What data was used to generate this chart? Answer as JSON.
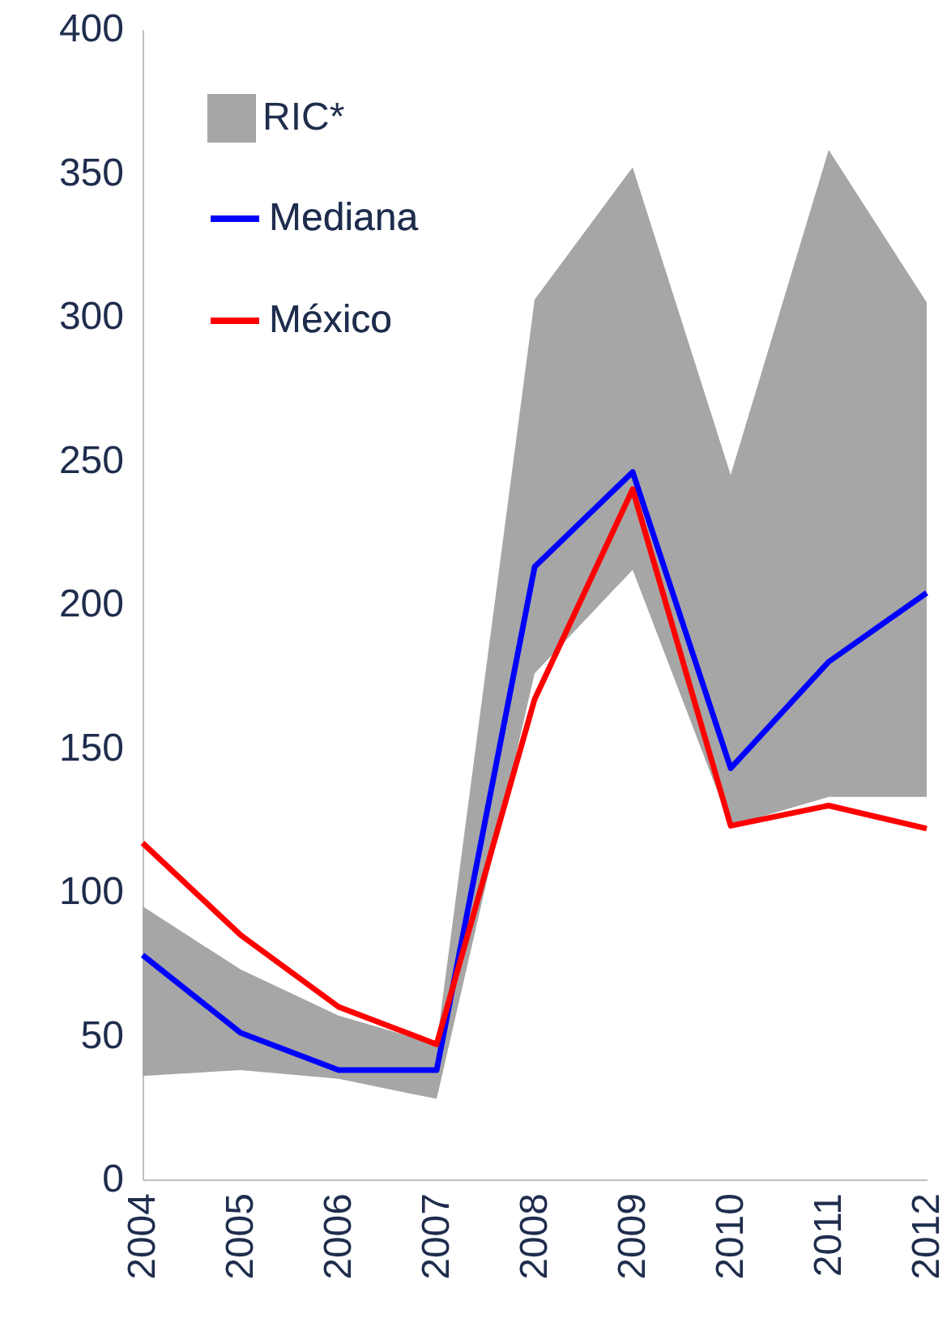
{
  "chart_data": {
    "type": "line",
    "categories": [
      "2004",
      "2005",
      "2006",
      "2007",
      "2008",
      "2009",
      "2010",
      "2011",
      "2012"
    ],
    "ylim": [
      0,
      400
    ],
    "yticks": [
      0,
      50,
      100,
      150,
      200,
      250,
      300,
      350,
      400
    ],
    "legend": "top left",
    "annotations": [
      "RIC*"
    ],
    "series": [
      {
        "name": "Mediana",
        "type": "line",
        "color": "#0000ff",
        "values": [
          78,
          51,
          38,
          38,
          213,
          246,
          143,
          180,
          204
        ],
        "lower": [
          36,
          38,
          35,
          28,
          176,
          212,
          123,
          133,
          133
        ],
        "upper": [
          95,
          73,
          57,
          47,
          306,
          352,
          245,
          358,
          305
        ]
      },
      {
        "name": "México",
        "type": "line",
        "color": "#ff0000",
        "values": [
          117,
          85,
          60,
          47,
          167,
          240,
          123,
          130,
          122
        ]
      }
    ]
  }
}
